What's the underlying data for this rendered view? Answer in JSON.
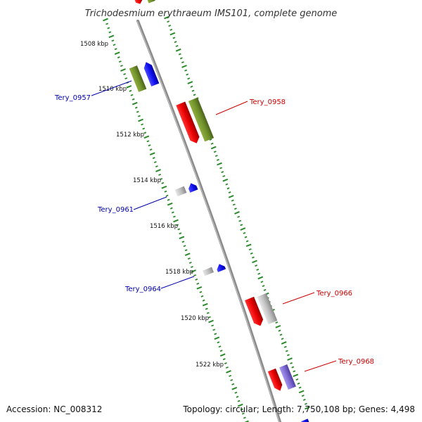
{
  "title": "Trichodesmium erythraeum IMS101, complete genome",
  "footer": {
    "accession": "Accession: NC_008312",
    "summary": "Topology: circular; Length: 7,750,108 bp; Genes: 4,498"
  },
  "colors": {
    "backbone": "#8a8a8a",
    "tick": "#2a8a2a",
    "forward_label": "#cc0000",
    "reverse_label": "#0000aa",
    "red_gene": "#e80000",
    "olive_gene": "#6f8f2a",
    "blue_gene": "#1010f0",
    "grey_gene": "#bdbdbd",
    "violet_gene": "#7b68d0"
  },
  "kbp_labels": [
    "1508 kbp",
    "1510 kbp",
    "1512 kbp",
    "1514 kbp",
    "1516 kbp",
    "1518 kbp",
    "1520 kbp",
    "1522 kbp"
  ],
  "gene_labels": {
    "tery_0957": "Tery_0957",
    "tery_0958": "Tery_0958",
    "tery_0961": "Tery_0961",
    "tery_0964": "Tery_0964",
    "tery_0966": "Tery_0966",
    "tery_0968": "Tery_0968"
  }
}
